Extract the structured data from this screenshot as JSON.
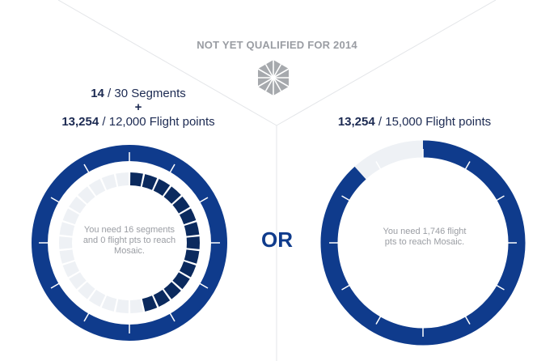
{
  "heading": "NOT YET QUALIFIED FOR 2014",
  "badge_icon": "hexagon-cube-logo-icon",
  "left": {
    "segments_current": "14",
    "segments_rest": " / 30 Segments",
    "plus": "+",
    "points_current": "13,254",
    "points_rest": " / 12,000 Flight points",
    "message": "You need 16 segments and 0 flight pts to reach Mosaic.",
    "segments_progress": 0.4667,
    "points_progress": 1.0
  },
  "or_label": "OR",
  "right": {
    "points_current": "13,254",
    "points_rest": " / 15,000 Flight points",
    "message": "You need 1,746 flight pts to reach Mosaic.",
    "points_progress": 0.8836
  },
  "colors": {
    "navy": "#0f3b8c",
    "segment_dark": "#0b2a5e",
    "track": "#eef1f5",
    "grey_text": "#9a9da3",
    "divider": "#e3e5e8"
  }
}
